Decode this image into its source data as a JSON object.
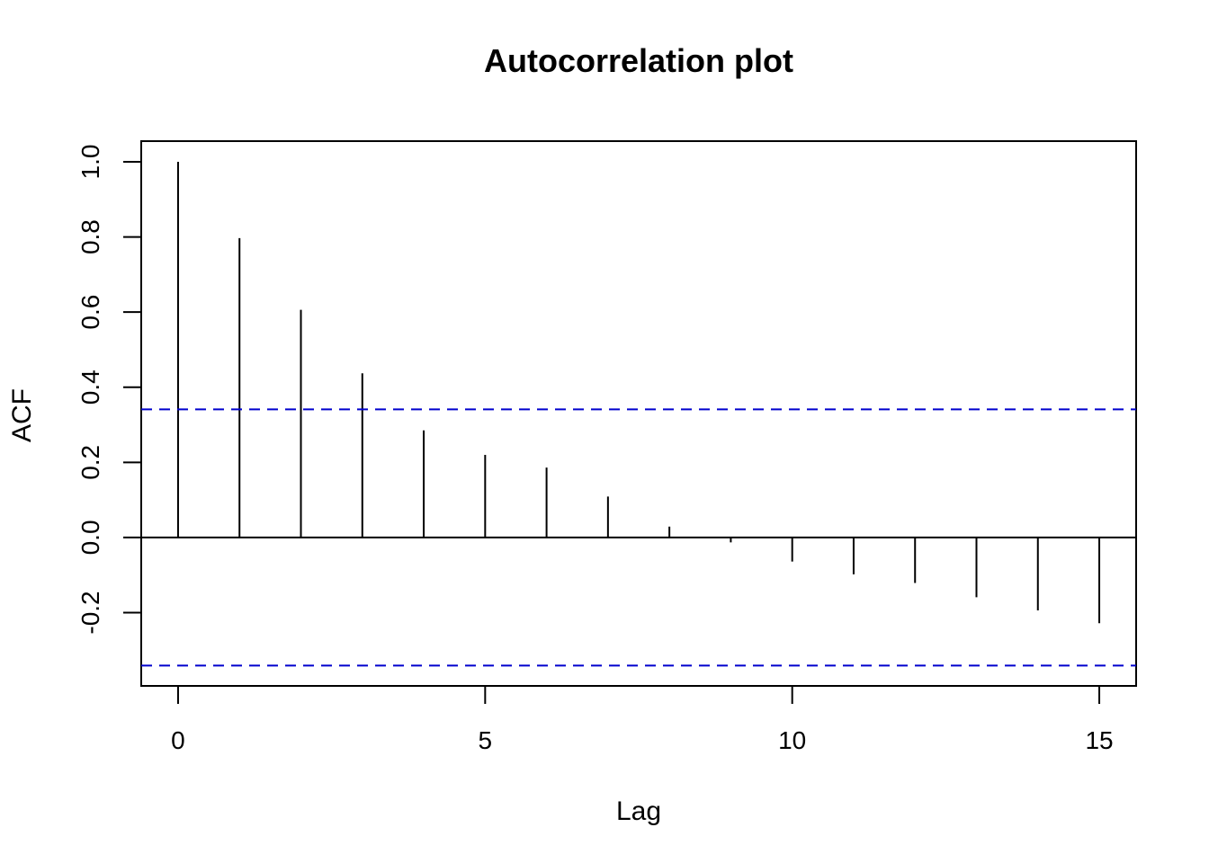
{
  "chart_data": {
    "type": "bar",
    "title": "Autocorrelation plot",
    "xlabel": "Lag",
    "ylabel": "ACF",
    "xlim": [
      -0.6,
      15.6
    ],
    "ylim": [
      -0.395,
      1.055
    ],
    "x_ticks": [
      0,
      5,
      10,
      15
    ],
    "x_tick_labels": [
      "0",
      "5",
      "10",
      "15"
    ],
    "y_ticks": [
      -0.2,
      0.0,
      0.2,
      0.4,
      0.6,
      0.8,
      1.0
    ],
    "y_tick_labels": [
      "-0.2",
      "0.0",
      "0.2",
      "0.4",
      "0.6",
      "0.8",
      "1.0"
    ],
    "lags": [
      0,
      1,
      2,
      3,
      4,
      5,
      6,
      7,
      8,
      9,
      10,
      11,
      12,
      13,
      14,
      15
    ],
    "values": [
      1.0,
      0.797,
      0.606,
      0.437,
      0.285,
      0.22,
      0.186,
      0.109,
      0.029,
      -0.013,
      -0.064,
      -0.098,
      -0.121,
      -0.159,
      -0.194,
      -0.228
    ],
    "confidence_bounds": [
      0.341,
      -0.341
    ],
    "grid": false,
    "colors": {
      "bars": "#000000",
      "confidence_line": "#0000CD",
      "frame": "#000000"
    }
  }
}
